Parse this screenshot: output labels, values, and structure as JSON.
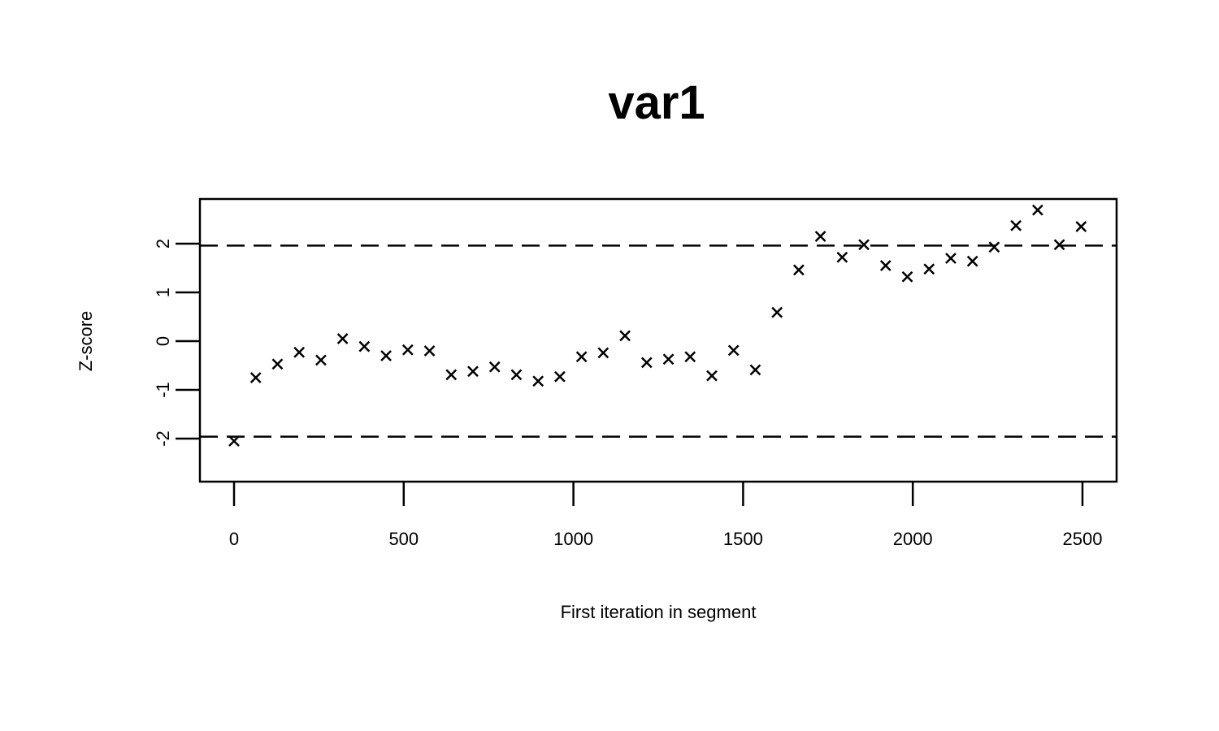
{
  "chart_data": {
    "type": "scatter",
    "title": "var1",
    "xlabel": "First iteration in segment",
    "ylabel": "Z-score",
    "xlim": [
      -100,
      2600
    ],
    "ylim": [
      -2.9,
      2.9
    ],
    "x_ticks": [
      0,
      500,
      1000,
      1500,
      2000,
      2500
    ],
    "y_ticks": [
      -2,
      -1,
      0,
      1,
      2
    ],
    "reference_lines": [
      -1.96,
      1.96
    ],
    "grid": false,
    "marker": "x",
    "points": [
      {
        "x": 0,
        "y": -2.05
      },
      {
        "x": 64,
        "y": -0.75
      },
      {
        "x": 128,
        "y": -0.47
      },
      {
        "x": 192,
        "y": -0.23
      },
      {
        "x": 256,
        "y": -0.39
      },
      {
        "x": 320,
        "y": 0.05
      },
      {
        "x": 384,
        "y": -0.11
      },
      {
        "x": 448,
        "y": -0.3
      },
      {
        "x": 512,
        "y": -0.18
      },
      {
        "x": 576,
        "y": -0.2
      },
      {
        "x": 640,
        "y": -0.69
      },
      {
        "x": 704,
        "y": -0.62
      },
      {
        "x": 768,
        "y": -0.53
      },
      {
        "x": 832,
        "y": -0.69
      },
      {
        "x": 896,
        "y": -0.82
      },
      {
        "x": 960,
        "y": -0.73
      },
      {
        "x": 1024,
        "y": -0.32
      },
      {
        "x": 1088,
        "y": -0.24
      },
      {
        "x": 1152,
        "y": 0.11
      },
      {
        "x": 1216,
        "y": -0.44
      },
      {
        "x": 1280,
        "y": -0.37
      },
      {
        "x": 1344,
        "y": -0.32
      },
      {
        "x": 1408,
        "y": -0.71
      },
      {
        "x": 1472,
        "y": -0.19
      },
      {
        "x": 1536,
        "y": -0.59
      },
      {
        "x": 1600,
        "y": 0.59
      },
      {
        "x": 1664,
        "y": 1.46
      },
      {
        "x": 1728,
        "y": 2.15
      },
      {
        "x": 1792,
        "y": 1.72
      },
      {
        "x": 1856,
        "y": 1.98
      },
      {
        "x": 1920,
        "y": 1.55
      },
      {
        "x": 1984,
        "y": 1.32
      },
      {
        "x": 2048,
        "y": 1.48
      },
      {
        "x": 2112,
        "y": 1.7
      },
      {
        "x": 2176,
        "y": 1.64
      },
      {
        "x": 2240,
        "y": 1.93
      },
      {
        "x": 2304,
        "y": 2.37
      },
      {
        "x": 2368,
        "y": 2.69
      },
      {
        "x": 2432,
        "y": 1.98
      },
      {
        "x": 2496,
        "y": 2.35
      }
    ]
  }
}
